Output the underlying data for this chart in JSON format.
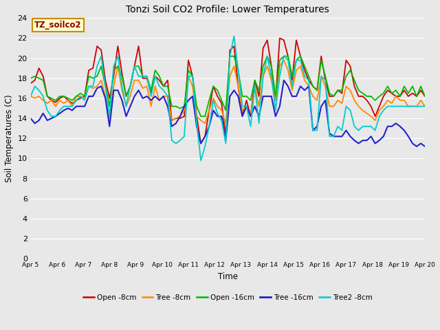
{
  "title": "Tonzi Soil CO2 Profile: Lower Temperatures",
  "xlabel": "Time",
  "ylabel": "Soil Temperatures (C)",
  "ylim": [
    0,
    24
  ],
  "yticks": [
    0,
    2,
    4,
    6,
    8,
    10,
    12,
    14,
    16,
    18,
    20,
    22,
    24
  ],
  "bg_color": "#e8e8e8",
  "legend_label": "TZ_soilco2",
  "series_order": [
    "Open -8cm",
    "Tree -8cm",
    "Open -16cm",
    "Tree -16cm",
    "Tree2 -8cm"
  ],
  "series": {
    "Open -8cm": {
      "color": "#cc0000",
      "lw": 1.3
    },
    "Tree -8cm": {
      "color": "#ff8800",
      "lw": 1.3
    },
    "Open -16cm": {
      "color": "#00bb00",
      "lw": 1.3
    },
    "Tree -16cm": {
      "color": "#2222cc",
      "lw": 1.5
    },
    "Tree2 -8cm": {
      "color": "#00cccc",
      "lw": 1.3
    }
  },
  "x_labels": [
    "Apr 5",
    "Apr 6",
    "Apr 7",
    "Apr 8",
    "Apr 9",
    "Apr 10",
    "Apr 11",
    "Apr 12",
    "Apr 13",
    "Apr 14",
    "Apr 15",
    "Apr 16",
    "Apr 17",
    "Apr 18",
    "Apr 19",
    "Apr 20"
  ],
  "open8": [
    17.5,
    17.8,
    19.0,
    18.2,
    16.2,
    15.8,
    15.6,
    16.0,
    16.2,
    15.8,
    15.5,
    15.8,
    16.0,
    16.2,
    18.8,
    19.0,
    21.2,
    20.8,
    17.8,
    16.0,
    18.2,
    21.2,
    18.5,
    16.2,
    17.2,
    19.2,
    21.2,
    18.0,
    18.0,
    16.5,
    18.2,
    17.8,
    17.2,
    17.8,
    13.8,
    14.0,
    14.0,
    14.2,
    19.8,
    18.2,
    14.2,
    11.5,
    12.2,
    14.8,
    17.2,
    16.2,
    15.5,
    12.2,
    20.8,
    21.2,
    17.2,
    14.2,
    15.8,
    14.2,
    17.8,
    16.2,
    21.0,
    21.8,
    19.2,
    15.8,
    22.0,
    21.8,
    20.2,
    17.8,
    21.8,
    20.2,
    18.8,
    17.8,
    17.2,
    16.8,
    20.2,
    17.8,
    16.2,
    16.2,
    16.8,
    16.5,
    19.8,
    19.2,
    17.2,
    16.2,
    16.2,
    15.8,
    15.2,
    14.2,
    15.2,
    16.2,
    16.8,
    16.5,
    16.2,
    16.2,
    16.8,
    16.2,
    16.5,
    16.2,
    16.8,
    16.2
  ],
  "tree8": [
    16.2,
    16.0,
    16.2,
    15.8,
    15.5,
    15.8,
    15.2,
    15.8,
    15.5,
    15.8,
    15.2,
    16.2,
    16.2,
    16.0,
    17.2,
    17.0,
    17.2,
    17.8,
    16.2,
    14.0,
    17.2,
    19.2,
    16.8,
    15.2,
    16.2,
    17.8,
    17.8,
    17.0,
    17.2,
    15.2,
    17.2,
    15.8,
    16.2,
    16.2,
    13.8,
    14.0,
    14.2,
    14.8,
    18.2,
    17.2,
    14.2,
    13.8,
    13.5,
    14.8,
    16.0,
    15.2,
    14.8,
    13.5,
    18.2,
    19.2,
    17.2,
    14.8,
    15.2,
    14.2,
    17.2,
    15.2,
    18.2,
    19.2,
    17.8,
    15.8,
    19.2,
    19.8,
    18.8,
    16.8,
    18.8,
    19.2,
    17.8,
    17.2,
    16.2,
    15.8,
    18.2,
    17.2,
    15.2,
    15.2,
    15.8,
    15.5,
    17.2,
    16.8,
    15.8,
    15.2,
    14.8,
    14.5,
    14.2,
    13.8,
    14.8,
    15.2,
    15.8,
    15.5,
    16.2,
    15.8,
    15.8,
    15.2,
    15.2,
    15.2,
    15.8,
    15.2
  ],
  "open16": [
    18.0,
    18.2,
    18.0,
    17.8,
    16.2,
    16.0,
    15.8,
    16.2,
    16.2,
    16.0,
    15.8,
    16.2,
    16.5,
    16.2,
    18.2,
    18.0,
    18.2,
    19.2,
    17.2,
    15.2,
    18.8,
    19.2,
    18.2,
    16.2,
    17.2,
    19.2,
    19.2,
    18.2,
    18.2,
    16.8,
    18.8,
    18.2,
    17.2,
    17.2,
    15.2,
    15.2,
    15.0,
    15.2,
    18.8,
    18.2,
    15.2,
    14.2,
    14.2,
    15.8,
    17.2,
    16.8,
    15.8,
    14.8,
    20.2,
    20.2,
    18.8,
    16.2,
    16.2,
    15.8,
    17.8,
    16.8,
    19.2,
    20.2,
    19.2,
    16.2,
    19.8,
    20.2,
    20.2,
    18.2,
    19.8,
    20.2,
    19.2,
    18.2,
    17.2,
    16.8,
    19.8,
    18.2,
    16.5,
    16.2,
    16.8,
    16.8,
    18.2,
    18.8,
    17.8,
    16.8,
    16.5,
    16.2,
    16.2,
    15.8,
    16.2,
    16.5,
    17.2,
    16.5,
    16.8,
    16.2,
    17.2,
    16.5,
    17.2,
    16.2,
    17.2,
    16.2
  ],
  "tree16": [
    14.0,
    13.5,
    13.8,
    14.5,
    13.8,
    14.0,
    14.2,
    14.5,
    14.8,
    15.0,
    14.8,
    15.2,
    15.2,
    15.2,
    16.2,
    16.2,
    17.0,
    17.2,
    16.0,
    13.2,
    16.8,
    16.8,
    15.8,
    14.2,
    15.2,
    16.2,
    16.8,
    16.0,
    16.2,
    15.8,
    16.2,
    15.8,
    16.2,
    15.2,
    13.2,
    13.5,
    14.2,
    15.2,
    15.8,
    16.2,
    13.2,
    11.5,
    12.2,
    13.2,
    14.8,
    14.2,
    14.2,
    11.8,
    16.2,
    16.8,
    16.2,
    14.2,
    15.2,
    14.2,
    15.2,
    14.2,
    16.2,
    16.2,
    16.2,
    14.2,
    15.2,
    17.8,
    17.2,
    16.2,
    16.2,
    17.2,
    16.8,
    17.2,
    12.8,
    13.2,
    15.2,
    15.8,
    12.5,
    12.2,
    12.2,
    12.2,
    12.8,
    12.2,
    11.8,
    11.5,
    11.8,
    11.8,
    12.2,
    11.5,
    11.8,
    12.2,
    13.2,
    13.2,
    13.5,
    13.2,
    12.8,
    12.2,
    11.5,
    11.2,
    11.5,
    11.2
  ],
  "tree28": [
    16.2,
    17.2,
    16.8,
    16.2,
    14.8,
    14.2,
    14.2,
    14.8,
    15.2,
    15.2,
    15.2,
    15.8,
    16.2,
    15.8,
    17.2,
    17.2,
    19.2,
    20.2,
    17.2,
    14.2,
    19.2,
    20.2,
    17.2,
    15.2,
    17.2,
    19.2,
    18.2,
    18.2,
    18.2,
    16.2,
    18.2,
    17.2,
    16.8,
    16.2,
    11.8,
    11.5,
    11.8,
    12.2,
    18.2,
    18.2,
    13.5,
    9.8,
    11.2,
    13.2,
    15.8,
    14.5,
    13.8,
    11.5,
    20.2,
    22.2,
    18.8,
    15.2,
    15.2,
    13.2,
    17.2,
    13.5,
    18.2,
    20.2,
    18.2,
    14.8,
    18.2,
    20.2,
    19.8,
    17.2,
    19.8,
    19.8,
    18.2,
    17.8,
    12.8,
    12.8,
    18.2,
    17.8,
    12.2,
    12.2,
    13.2,
    12.8,
    15.2,
    14.8,
    13.2,
    12.8,
    13.2,
    13.2,
    13.2,
    12.8,
    14.2,
    14.8,
    15.2,
    15.2,
    15.2,
    15.2,
    15.2,
    15.2,
    15.2,
    15.2,
    15.2,
    15.2
  ]
}
